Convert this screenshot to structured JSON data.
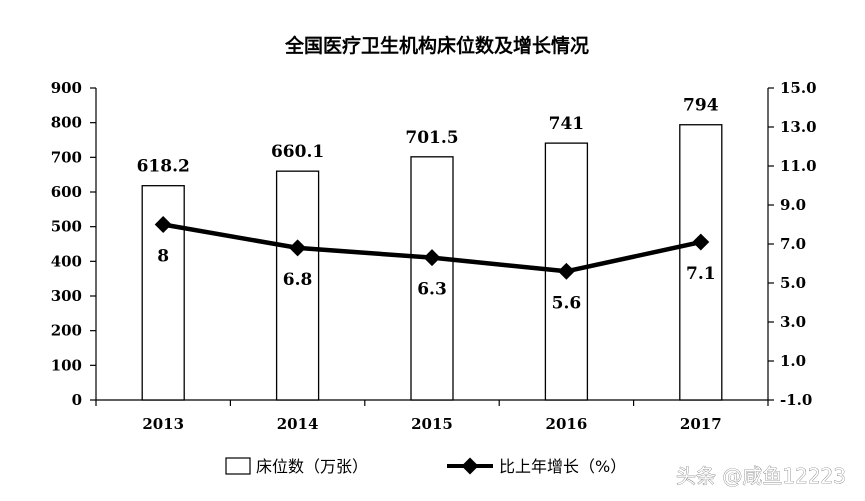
{
  "chart_data": {
    "type": "bar",
    "title": "全国医疗卫生机构床位数及增长情况",
    "categories": [
      "2013",
      "2014",
      "2015",
      "2016",
      "2017"
    ],
    "series": [
      {
        "name": "床位数（万张）",
        "type": "bar",
        "axis": "left",
        "values": [
          618.2,
          660.1,
          701.5,
          741,
          794
        ],
        "labels": [
          "618.2",
          "660.1",
          "701.5",
          "741",
          "794"
        ]
      },
      {
        "name": "比上年增长（%）",
        "type": "line",
        "axis": "right",
        "values": [
          8,
          6.8,
          6.3,
          5.6,
          7.1
        ],
        "labels": [
          "8",
          "6.8",
          "6.3",
          "5.6",
          "7.1"
        ]
      }
    ],
    "y_left": {
      "min": 0,
      "max": 900,
      "ticks": [
        "0",
        "100",
        "200",
        "300",
        "400",
        "500",
        "600",
        "700",
        "800",
        "900"
      ]
    },
    "y_right": {
      "min": -1.0,
      "max": 15.0,
      "ticks": [
        "-1.0",
        "1.0",
        "3.0",
        "5.0",
        "7.0",
        "9.0",
        "11.0",
        "13.0",
        "15.0"
      ]
    },
    "grid": false,
    "legend_position": "bottom"
  },
  "watermark": "头条 @咸鱼12223",
  "colors": {
    "bar_fill": "#ffffff",
    "bar_stroke": "#000000",
    "line": "#000000",
    "text": "#000000",
    "watermark": "#ffffff"
  }
}
